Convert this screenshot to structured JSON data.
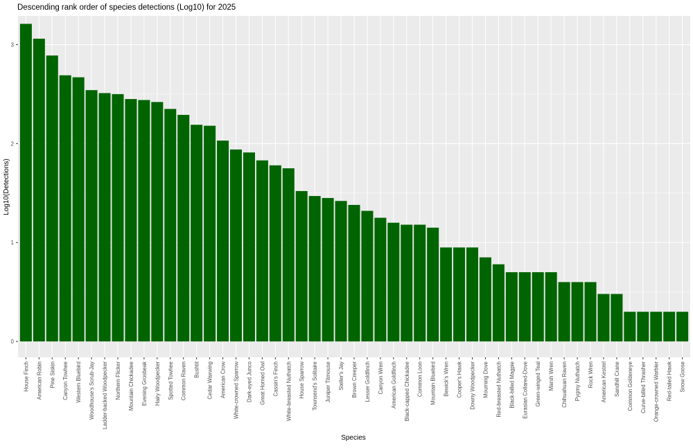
{
  "chart_data": {
    "type": "bar",
    "title": "Descending rank order of species detections (Log10) for 2025",
    "xlabel": "Species",
    "ylabel": "Log10(Detections)",
    "ylim": [
      -0.16,
      3.29
    ],
    "yticks": [
      0,
      1,
      2,
      3
    ],
    "grid": true,
    "bar_color": "#006400",
    "panel_color": "#EBEBEB",
    "categories": [
      "House Finch",
      "American Robin",
      "Pine Siskin",
      "Canyon Towhee",
      "Western Bluebird",
      "Woodhouse's Scrub-Jay",
      "Ladder-backed Woodpecker",
      "Northern Flicker",
      "Mountain Chickadee",
      "Evening Grosbeak",
      "Hairy Woodpecker",
      "Spotted Towhee",
      "Common Raven",
      "Bushtit",
      "Cedar Waxwing",
      "American Crow",
      "White-crowned Sparrow",
      "Dark-eyed Junco",
      "Great Horned Owl",
      "Cassin's Finch",
      "White-breasted Nuthatch",
      "House Sparrow",
      "Townsend's Solitaire",
      "Juniper Titmouse",
      "Steller's Jay",
      "Brown Creeper",
      "Lesser Goldfinch",
      "Canyon Wren",
      "American Goldfinch",
      "Black-capped Chickadee",
      "Common Loon",
      "Mountain Bluebird",
      "Bewick's Wren",
      "Cooper's Hawk",
      "Downy Woodpecker",
      "Mourning Dove",
      "Red-breasted Nuthatch",
      "Black-billed Magpie",
      "Eurasian Collared-Dove",
      "Green-winged Teal",
      "Marsh Wren",
      "Chihuahuan Raven",
      "Pygmy Nuthatch",
      "Rock Wren",
      "American Kestrel",
      "Sandhill Crane",
      "Common Goldeneye",
      "Curve-billed Thrasher",
      "Orange-crowned Warbler",
      "Red-tailed Hawk",
      "Snow Goose"
    ],
    "values": [
      3.21,
      3.06,
      2.89,
      2.69,
      2.67,
      2.54,
      2.51,
      2.5,
      2.45,
      2.44,
      2.42,
      2.35,
      2.29,
      2.19,
      2.18,
      2.03,
      1.94,
      1.91,
      1.83,
      1.78,
      1.75,
      1.52,
      1.47,
      1.45,
      1.42,
      1.38,
      1.32,
      1.25,
      1.2,
      1.18,
      1.18,
      1.15,
      0.95,
      0.95,
      0.95,
      0.85,
      0.78,
      0.7,
      0.7,
      0.7,
      0.7,
      0.6,
      0.6,
      0.6,
      0.48,
      0.48,
      0.3,
      0.3,
      0.3,
      0.3,
      0.3
    ]
  }
}
